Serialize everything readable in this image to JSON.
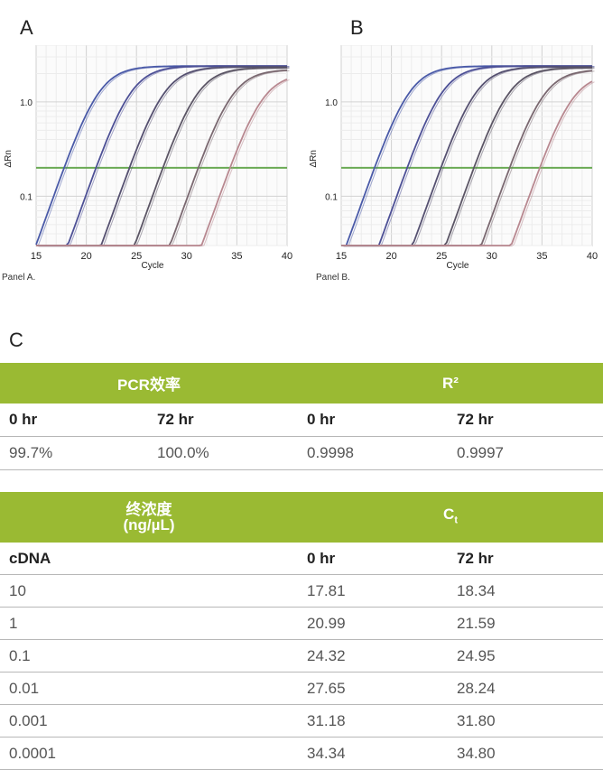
{
  "panels": [
    {
      "letter": "A",
      "caption": "Panel A."
    },
    {
      "letter": "B",
      "caption": "Panel B."
    }
  ],
  "section_c": {
    "letter": "C"
  },
  "table_efficiency": {
    "headers": {
      "pcr": "PCR效率",
      "r2": "R²"
    },
    "subheaders": [
      "0 hr",
      "72 hr",
      "0 hr",
      "72 hr"
    ],
    "row": [
      "99.7%",
      "100.0%",
      "0.9998",
      "0.9997"
    ]
  },
  "table_ct": {
    "headers": {
      "conc_line1": "终浓度",
      "conc_line2": "(ng/µL)",
      "ct": "C",
      "ct_sub": "t"
    },
    "subheaders": [
      "cDNA",
      "0 hr",
      "72 hr"
    ],
    "rows": [
      [
        "10",
        "17.81",
        "18.34"
      ],
      [
        "1",
        "20.99",
        "21.59"
      ],
      [
        "0.1",
        "24.32",
        "24.95"
      ],
      [
        "0.01",
        "27.65",
        "28.24"
      ],
      [
        "0.001",
        "31.18",
        "31.80"
      ],
      [
        "0.0001",
        "34.34",
        "34.80"
      ]
    ]
  },
  "chart_data": [
    {
      "type": "line",
      "xlabel": "Cycle",
      "ylabel": "ΔRn",
      "x_ticks": [
        15,
        20,
        25,
        30,
        35,
        40
      ],
      "y_ticks": [
        "1.0",
        "0.1"
      ],
      "xlim": [
        15,
        40
      ],
      "ylim": [
        0.03,
        4
      ],
      "y_scale": "log",
      "threshold": 0.2,
      "grid": true,
      "series": [
        {
          "ct": 17.81,
          "plateau": 2.4,
          "color": "#4a5aa8"
        },
        {
          "ct": 20.99,
          "plateau": 2.4,
          "color": "#4d5096"
        },
        {
          "ct": 24.32,
          "plateau": 2.35,
          "color": "#555070"
        },
        {
          "ct": 27.65,
          "plateau": 2.3,
          "color": "#5b5565"
        },
        {
          "ct": 31.18,
          "plateau": 2.2,
          "color": "#7a6870"
        },
        {
          "ct": 34.34,
          "plateau": 2.0,
          "color": "#b88890"
        }
      ]
    },
    {
      "type": "line",
      "xlabel": "Cycle",
      "ylabel": "ΔRn",
      "x_ticks": [
        15,
        20,
        25,
        30,
        35,
        40
      ],
      "y_ticks": [
        "1.0",
        "0.1"
      ],
      "xlim": [
        15,
        40
      ],
      "ylim": [
        0.03,
        4
      ],
      "y_scale": "log",
      "threshold": 0.2,
      "grid": true,
      "series": [
        {
          "ct": 18.34,
          "plateau": 2.4,
          "color": "#4a5aa8"
        },
        {
          "ct": 21.59,
          "plateau": 2.4,
          "color": "#4d5096"
        },
        {
          "ct": 24.95,
          "plateau": 2.35,
          "color": "#555070"
        },
        {
          "ct": 28.24,
          "plateau": 2.3,
          "color": "#5b5565"
        },
        {
          "ct": 31.8,
          "plateau": 2.2,
          "color": "#7a6870"
        },
        {
          "ct": 34.8,
          "plateau": 2.0,
          "color": "#b88890"
        }
      ]
    }
  ]
}
